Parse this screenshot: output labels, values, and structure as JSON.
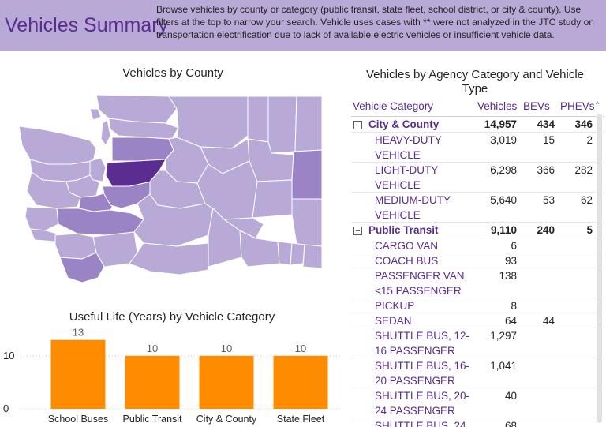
{
  "header": {
    "title": "Vehicles Summary",
    "description": "Browse vehicles by county or category (public transit, state fleet, school district, or city & county). Use filters at the top to narrow your search. Vehicle uses cases with ** were not analyzed in the JTC study on transportation electrification due to lack of available electric vehicles or insufficient vehicle data."
  },
  "map": {
    "title": "Vehicles by County",
    "colors": {
      "base": "#b9a9d7",
      "medium": "#9a84c6",
      "dark": "#5b2d91",
      "border": "#ffffff"
    }
  },
  "bar_chart": {
    "title": "Useful Life (Years) by Vehicle Category"
  },
  "chart_data": {
    "type": "bar",
    "title": "Useful Life (Years) by Vehicle Category",
    "categories": [
      "School Buses",
      "Public Transit",
      "City & County",
      "State Fleet"
    ],
    "values": [
      13,
      10,
      10,
      10
    ],
    "value_labels": [
      "13",
      "10",
      "10",
      "10"
    ],
    "y_ticks": [
      "0",
      "10"
    ],
    "ylim": [
      0,
      14
    ],
    "xlabel": "",
    "ylabel": "",
    "grid": true,
    "bar_color": "#ff8c00"
  },
  "table": {
    "title": "Vehicles by Agency Category and Vehicle Type",
    "columns": [
      "Vehicle Category",
      "Vehicles",
      "BEVs",
      "PHEVs"
    ],
    "rows": [
      {
        "type": "group",
        "label": "City & County",
        "vehicles": "14,957",
        "bevs": "434",
        "phevs": "346"
      },
      {
        "type": "item",
        "label": "HEAVY-DUTY VEHICLE",
        "vehicles": "3,019",
        "bevs": "15",
        "phevs": "2"
      },
      {
        "type": "item",
        "label": "LIGHT-DUTY VEHICLE",
        "vehicles": "6,298",
        "bevs": "366",
        "phevs": "282"
      },
      {
        "type": "item",
        "label": "MEDIUM-DUTY VEHICLE",
        "vehicles": "5,640",
        "bevs": "53",
        "phevs": "62"
      },
      {
        "type": "group",
        "label": "Public Transit",
        "vehicles": "9,110",
        "bevs": "240",
        "phevs": "5"
      },
      {
        "type": "item",
        "label": "CARGO VAN",
        "vehicles": "6",
        "bevs": "",
        "phevs": ""
      },
      {
        "type": "item",
        "label": "COACH BUS",
        "vehicles": "93",
        "bevs": "",
        "phevs": ""
      },
      {
        "type": "item",
        "label": "PASSENGER VAN, <15 PASSENGER",
        "vehicles": "138",
        "bevs": "",
        "phevs": ""
      },
      {
        "type": "item",
        "label": "PICKUP",
        "vehicles": "8",
        "bevs": "",
        "phevs": ""
      },
      {
        "type": "item",
        "label": "SEDAN",
        "vehicles": "64",
        "bevs": "44",
        "phevs": ""
      },
      {
        "type": "item",
        "label": "SHUTTLE BUS, 12-16 PASSENGER",
        "vehicles": "1,297",
        "bevs": "",
        "phevs": ""
      },
      {
        "type": "item",
        "label": "SHUTTLE BUS, 16-20 PASSENGER",
        "vehicles": "1,041",
        "bevs": "",
        "phevs": ""
      },
      {
        "type": "item",
        "label": "SHUTTLE BUS, 20-24 PASSENGER",
        "vehicles": "40",
        "bevs": "",
        "phevs": ""
      },
      {
        "type": "item",
        "label": "SHUTTLE BUS, 24",
        "vehicles": "68",
        "bevs": "",
        "phevs": ""
      }
    ]
  }
}
